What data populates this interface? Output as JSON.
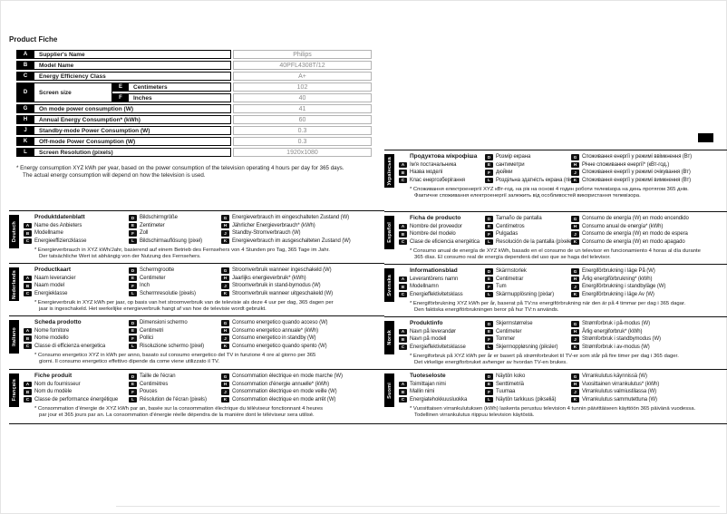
{
  "page": {
    "title": "Product Fiche",
    "footnote": [
      "* Energy consumption XYZ kWh per year, based on the power consumption of the television operating 4 hours per day for 365 days.",
      "The actual energy consumption will depend on how the television is used."
    ]
  },
  "table": {
    "rows": [
      {
        "key": "A",
        "label": "Supplier's Name",
        "value": "Philips"
      },
      {
        "key": "B",
        "label": "Model Name",
        "value": "40PFL4308T/12"
      },
      {
        "key": "C",
        "label": "Energy Efficiency Class",
        "value": "A+"
      },
      {
        "key": "D",
        "label": "Screen size",
        "sub": [
          {
            "key": "E",
            "label": "Centimeters",
            "value": "102"
          },
          {
            "key": "F",
            "label": "Inches",
            "value": "40"
          }
        ]
      },
      {
        "key": "G",
        "label": "On mode power consumption (W)",
        "value": "41"
      },
      {
        "key": "H",
        "label": "Annual Energy Consumption* (kWh)",
        "value": "60"
      },
      {
        "key": "J",
        "label": "Standby-mode Power Consumption (W)",
        "value": "0.3"
      },
      {
        "key": "K",
        "label": "Off-mode Power Consumption (W)",
        "value": "0.3"
      },
      {
        "key": "L",
        "label": "Screen Resolution (pixels)",
        "value": "1920x1080"
      }
    ]
  },
  "columns": {
    "left": [
      {
        "lang": "Deutsch",
        "title": "Produktdatenblatt",
        "items": {
          "A": "Name des Anbieters",
          "B": "Modellname",
          "C": "Energieeffizienzklasse",
          "D": "Bildschirmgröße",
          "E": "Zentimeter",
          "F": "Zoll",
          "L": "Bildschirmauflösung (pixel)",
          "G": "Energieverbrauch im eingeschalteten Zustand (W)",
          "H": "Jährlicher Energieverbrauch* (kWh)",
          "J": "Standby-Stromverbrauch (W)",
          "K": "Energieverbrauch im ausgeschalteten Zustand (W)"
        },
        "footnote": [
          "* Energieverbrauch in XYZ kWh/Jahr, basierend auf einem Betrieb des Fernsehers von 4 Stunden pro Tag, 365 Tage im Jahr.",
          "Der tatsächliche Wert ist abhängig von der Nutzung des Fernsehers."
        ]
      },
      {
        "lang": "Nederlands",
        "title": "Productkaart",
        "items": {
          "A": "Naam leverancier",
          "B": "Naam model",
          "C": "Energieklasse",
          "D": "Schermgrootte",
          "E": "Centimeter",
          "F": "Inch",
          "L": "Schermresolutie (pixels)",
          "G": "Stroomverbruik wanneer ingeschakeld (W)",
          "H": "Jaarlijks energieverbruik* (kWh)",
          "J": "Stroomverbruik in stand-bymodus (W)",
          "K": "Stroomverbruik wanneer uitgeschakeld (W)"
        },
        "footnote": [
          "* Energieverbruik in XYZ kWh per jaar, op basis van het stroomverbruik van de televisie als deze 4 uur per dag, 365 dagen per",
          "jaar is ingeschakeld. Het werkelijke energieverbruik hangt af van hoe de televisie wordt gebruikt."
        ]
      },
      {
        "lang": "Italiano",
        "title": "Scheda prodotto",
        "items": {
          "A": "Nome fornitore",
          "B": "Nome modello",
          "C": "Classe di efficienza energetica",
          "D": "Dimensioni schermo",
          "E": "Centimetri",
          "F": "Pollici",
          "L": "Risoluzione schermo (pixel)",
          "G": "Consumo energetico quando acceso (W)",
          "H": "Consumo energetico annuale* (kWh)",
          "J": "Consumo energetico in standby (W)",
          "K": "Consumo energetico quando spento (W)"
        },
        "footnote": [
          "* Consumo energetico XYZ in kWh per anno, basato sul consumo energetico del TV in funzione 4 ore al giorno per 365",
          "giorni. Il consumo energetico effettivo dipende da come viene utilizzato il TV."
        ]
      },
      {
        "lang": "Français",
        "title": "Fiche produit",
        "items": {
          "A": "Nom du fournisseur",
          "B": "Nom du modèle",
          "C": "Classe de performance énergétique",
          "D": "Taille de l'écran",
          "E": "Centimètres",
          "F": "Pouces",
          "L": "Résolution de l'écran (pixels)",
          "G": "Consommation électrique en mode marche (W)",
          "H": "Consommation d'énergie annuelle* (kWh)",
          "J": "Consommation électrique en mode veille (W)",
          "K": "Consommation électrique en mode arrêt (W)"
        },
        "footnote": [
          "* Consommation d'énergie de XYZ kWh par an, basée sur la consommation électrique du téléviseur fonctionnant 4 heures",
          "par jour et 365 jours par an. La consommation d'énergie réelle dépendra de la manière dont le téléviseur sera utilisé."
        ]
      }
    ],
    "right": [
      {
        "lang": "Українська",
        "title": "Продуктова мікрофіша",
        "items": {
          "A": "Ім'я постачальника",
          "B": "Назва моделі",
          "C": "Клас енергозберігання",
          "D": "Розмір екрана",
          "E": "сантиметри",
          "F": "дюйми",
          "L": "Роздільна здатність екрана (пікс.)",
          "G": "Споживання енергії у режимі ввімкнення (Вт)",
          "H": "Річне споживання енергії* (кВт-год.)",
          "J": "Споживання енергії у режимі очікування (Вт)",
          "K": "Споживання енергії у режимі вимкнення (Вт)"
        },
        "footnote": [
          "* Споживання електроенергії XYZ кВт-год. на рік на основі 4 годин роботи телевізора на день протягом 365 днів.",
          "Фактичне споживання електроенергії залежить від особливостей використання телевізора."
        ]
      },
      {
        "lang": "Español",
        "title": "Ficha de producto",
        "items": {
          "A": "Nombre del proveedor",
          "B": "Nombre del modelo",
          "C": "Clase de eficiencia energética",
          "D": "Tamaño de pantalla",
          "E": "Centímetros",
          "F": "Pulgadas",
          "L": "Resolución de la pantalla (píxeles)",
          "G": "Consumo de energía (W) en modo encendido",
          "H": "Consumo anual de energía* (kWh)",
          "J": "Consumo de energía (W) en modo de espera",
          "K": "Consumo de energía (W) en modo apagado"
        },
        "footnote": [
          "* Consumo anual de energía de XYZ kWh, basado en el consumo de un televisor en funcionamiento 4 horas al día durante",
          "365 días. El consumo real de energía dependerá del uso que se haga del televisor."
        ]
      },
      {
        "lang": "Svenska",
        "title": "Informationsblad",
        "items": {
          "A": "Leverantörens namn",
          "B": "Modellnamn",
          "C": "Energieffektivitetsklass",
          "D": "Skärmstorlek",
          "E": "Centimetrar",
          "F": "Tum",
          "L": "Skärmupplösning (pixlar)",
          "G": "Energiförbrukning i läge På (W)",
          "H": "Årlig energiförbrukning* (kWh)",
          "J": "Energiförbrukning i standbyläge (W)",
          "K": "Energiförbrukning i läge Av (W)"
        },
        "footnote": [
          "* Energiförbrukning XYZ kWh per år, baserat på TV:ns energiförbrukning när den är på 4 timmar per dag i 365 dagar.",
          "Den faktiska energiförbrukningen beror på hur TV:n används."
        ]
      },
      {
        "lang": "Norsk",
        "title": "Produktinfo",
        "items": {
          "A": "Navn på leverandør",
          "B": "Navn på modell",
          "C": "Energieffektivitetsklasse",
          "D": "Skjermstørrelse",
          "E": "Centimeter",
          "F": "Tommer",
          "L": "Skjermoppløsning (piksler)",
          "G": "Strømforbruk i på-modus (W)",
          "H": "Årlig energiforbruk* (kWh)",
          "J": "Strømforbruk i standbymodus (W)",
          "K": "Strømforbruk i av-modus (W)"
        },
        "footnote": [
          "* Energiforbruk på XYZ kWh per år er basert på strømforbruket til TV-er som står på fire timer per dag i 365 dager.",
          "Det virkelige energiforbruket avhenger av hvordan TV-en brukes."
        ]
      },
      {
        "lang": "Suomi",
        "title": "Tuoteseloste",
        "items": {
          "A": "Toimittajan nimi",
          "B": "Mallin nimi",
          "C": "Energiatehokkuusluokka",
          "D": "Näytön koko",
          "E": "Senttimetriä",
          "F": "Tuumaa",
          "L": "Näytön tarkkuus (pikseliä)",
          "G": "Virrankulutus käynnissä (W)",
          "H": "Vuosittainen virrankulutus* (kWh)",
          "J": "Virrankulutus valmiustilassa (W)",
          "K": "Virrankulutus sammutettuna (W)"
        },
        "footnote": [
          "* Vuosittaisen virrankulutuksen (kWh) laskenta perustuu television 4 tunnin päivittäiseen käyttöön 365 päivänä vuodessa.",
          "Todellinen virrankulutus riippuu television käytöstä."
        ]
      }
    ]
  }
}
